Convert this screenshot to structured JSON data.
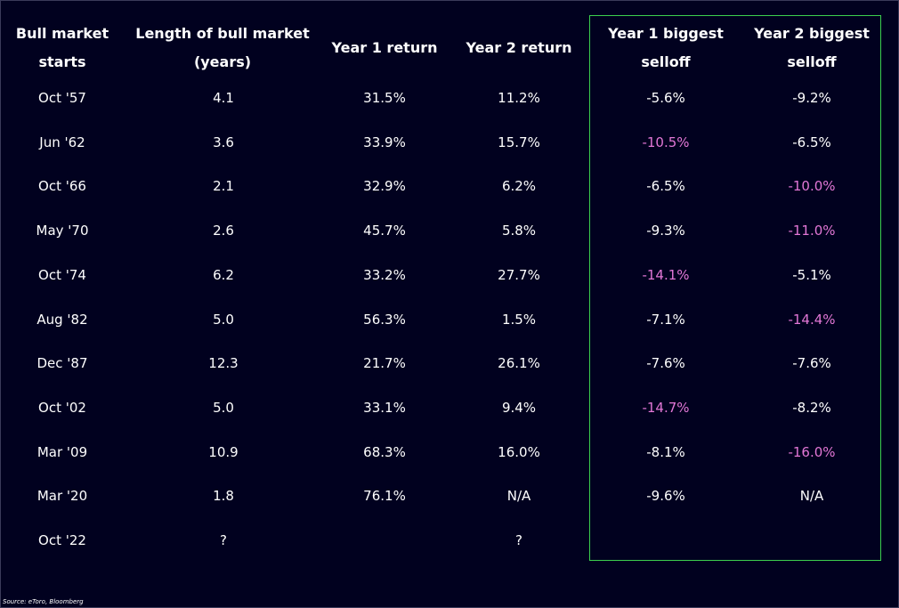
{
  "headers": [
    "Bull market starts",
    "Length of bull market (years)",
    "Year 1 return",
    "Year 2 return",
    "Year 1 biggest selloff",
    "Year 2 biggest selloff"
  ],
  "rows": [
    {
      "start": "Oct '57",
      "length": "4.1",
      "y1_return": "31.5%",
      "y2_return": "11.2%",
      "y1_selloff": "-5.6%",
      "y2_selloff": "-9.2%",
      "y1_highlight": false,
      "y2_highlight": false
    },
    {
      "start": "Jun '62",
      "length": "3.6",
      "y1_return": "33.9%",
      "y2_return": "15.7%",
      "y1_selloff": "-10.5%",
      "y2_selloff": "-6.5%",
      "y1_highlight": true,
      "y2_highlight": false
    },
    {
      "start": "Oct '66",
      "length": "2.1",
      "y1_return": "32.9%",
      "y2_return": "6.2%",
      "y1_selloff": "-6.5%",
      "y2_selloff": "-10.0%",
      "y1_highlight": false,
      "y2_highlight": true
    },
    {
      "start": "May '70",
      "length": "2.6",
      "y1_return": "45.7%",
      "y2_return": "5.8%",
      "y1_selloff": "-9.3%",
      "y2_selloff": "-11.0%",
      "y1_highlight": false,
      "y2_highlight": true
    },
    {
      "start": "Oct '74",
      "length": "6.2",
      "y1_return": "33.2%",
      "y2_return": "27.7%",
      "y1_selloff": "-14.1%",
      "y2_selloff": "-5.1%",
      "y1_highlight": true,
      "y2_highlight": false
    },
    {
      "start": "Aug '82",
      "length": "5.0",
      "y1_return": "56.3%",
      "y2_return": "1.5%",
      "y1_selloff": "-7.1%",
      "y2_selloff": "-14.4%",
      "y1_highlight": false,
      "y2_highlight": true
    },
    {
      "start": "Dec '87",
      "length": "12.3",
      "y1_return": "21.7%",
      "y2_return": "26.1%",
      "y1_selloff": "-7.6%",
      "y2_selloff": "-7.6%",
      "y1_highlight": false,
      "y2_highlight": false
    },
    {
      "start": "Oct '02",
      "length": "5.0",
      "y1_return": "33.1%",
      "y2_return": "9.4%",
      "y1_selloff": "-14.7%",
      "y2_selloff": "-8.2%",
      "y1_highlight": true,
      "y2_highlight": false
    },
    {
      "start": "Mar '09",
      "length": "10.9",
      "y1_return": "68.3%",
      "y2_return": "16.0%",
      "y1_selloff": "-8.1%",
      "y2_selloff": "-16.0%",
      "y1_highlight": false,
      "y2_highlight": true
    },
    {
      "start": "Mar '20",
      "length": "1.8",
      "y1_return": "76.1%",
      "y2_return": "N/A",
      "y1_selloff": "-9.6%",
      "y2_selloff": "N/A",
      "y1_highlight": false,
      "y2_highlight": false
    },
    {
      "start": "Oct '22",
      "length": "?",
      "y1_return": "",
      "y2_return": "?",
      "y1_selloff": "",
      "y2_selloff": "",
      "y1_highlight": false,
      "y2_highlight": false
    }
  ],
  "source": "Source: eToro, Bloomberg",
  "colors": {
    "background": "#01011f",
    "highlight_text": "#e277d6",
    "box_border": "#3ccf4e"
  }
}
